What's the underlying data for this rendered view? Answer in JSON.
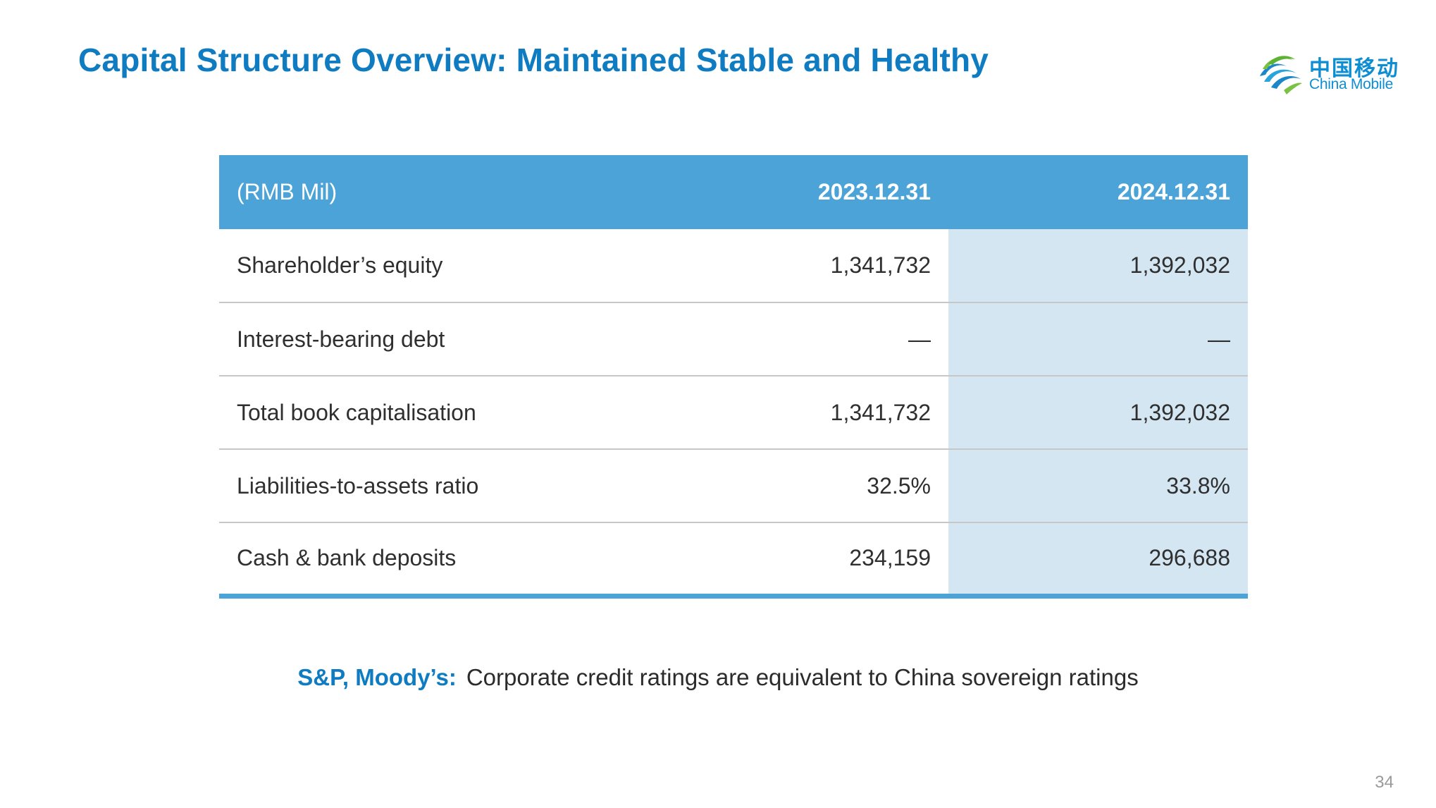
{
  "slide": {
    "title": "Capital Structure Overview: Maintained Stable and Healthy",
    "page_number": "34"
  },
  "logo": {
    "text_cn": "中国移动",
    "text_en": "China Mobile",
    "color": "#0e8ed2",
    "icon": "china-mobile-logo-icon"
  },
  "table": {
    "headers": {
      "unit": "(RMB Mil)",
      "col_2023": "2023.12.31",
      "col_2024": "2024.12.31"
    },
    "rows": [
      {
        "label": "Shareholder’s equity",
        "v2023": "1,341,732",
        "v2024": "1,392,032"
      },
      {
        "label": "Interest-bearing debt",
        "v2023": "—",
        "v2024": "—"
      },
      {
        "label": "Total book capitalisation",
        "v2023": "1,341,732",
        "v2024": "1,392,032"
      },
      {
        "label": "Liabilities-to-assets ratio",
        "v2023": "32.5%",
        "v2024": "33.8%"
      },
      {
        "label": "Cash & bank deposits",
        "v2023": "234,159",
        "v2024": "296,688"
      }
    ]
  },
  "note": {
    "agencies": "S&P, Moody’s:",
    "statement": "Corporate credit ratings are equivalent to China sovereign ratings"
  },
  "colors": {
    "title": "#0f7cc2",
    "header_bg": "#4ba3d8",
    "highlight_col_bg": "#d3e6f2",
    "row_divider": "#c7c7c7"
  }
}
